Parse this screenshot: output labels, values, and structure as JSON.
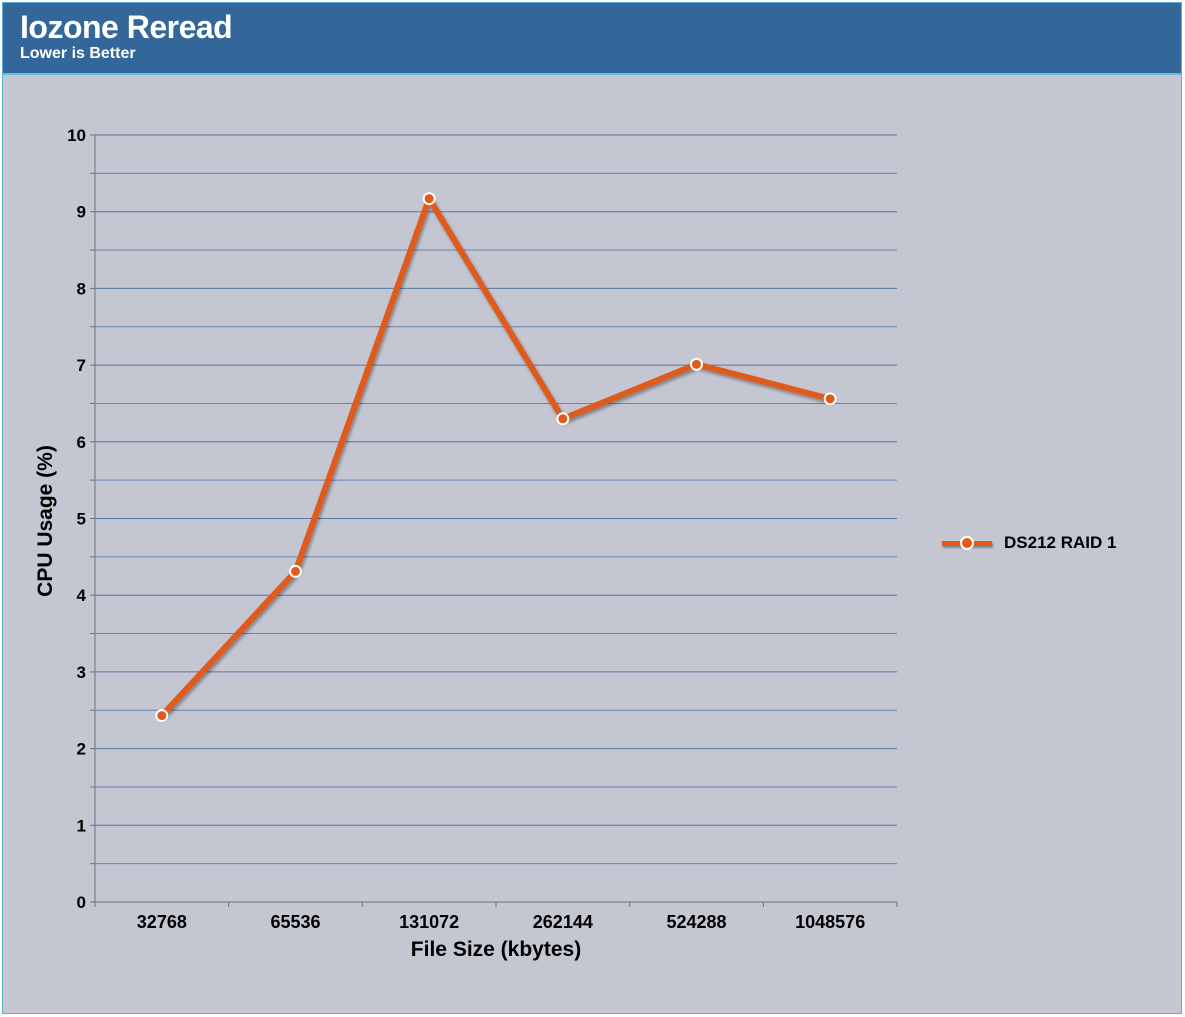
{
  "header": {
    "title": "Iozone Reread",
    "subtitle": "Lower is Better"
  },
  "colors": {
    "header_bg": "#336699",
    "plot_bg": "#c4c6d2",
    "gridline": "#4a6e9e",
    "series": "#e05a1a",
    "marker_border": "#ffffff"
  },
  "chart_data": {
    "type": "line",
    "categories": [
      "32768",
      "65536",
      "131072",
      "262144",
      "524288",
      "1048576"
    ],
    "series": [
      {
        "name": "DS212 RAID 1",
        "values": [
          2.43,
          4.31,
          9.17,
          6.3,
          7.01,
          6.56
        ]
      }
    ],
    "xlabel": "File Size (kbytes)",
    "ylabel": "CPU Usage (%)",
    "ylim": [
      0,
      10
    ],
    "yticks": [
      "0",
      "1",
      "2",
      "3",
      "4",
      "5",
      "6",
      "7",
      "8",
      "9",
      "10"
    ],
    "grid": true,
    "minor_grid": true,
    "legend_position": "right"
  }
}
